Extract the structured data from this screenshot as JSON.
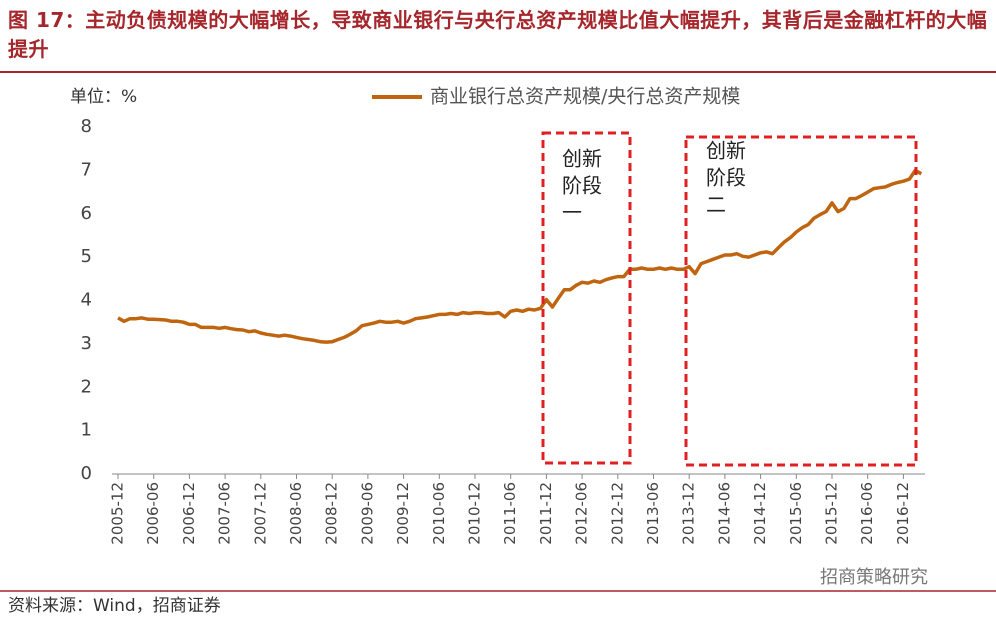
{
  "chart_data": {
    "type": "line",
    "title": "图 17：主动负债规模的大幅增长，导致商业银行与央行总资产规模比值大幅提升，其背后是金融杠杆的大幅提升",
    "y_unit_label": "单位：%",
    "source": "资料来源：Wind，招商证券",
    "watermark": "招商策略研究",
    "annotations": [
      [
        "创新",
        "阶段",
        "一"
      ],
      [
        "创新",
        "阶段",
        "二"
      ]
    ],
    "x": [
      "2005-12",
      "2006-01",
      "2006-02",
      "2006-03",
      "2006-04",
      "2006-05",
      "2006-06",
      "2006-07",
      "2006-08",
      "2006-09",
      "2006-10",
      "2006-11",
      "2006-12",
      "2007-01",
      "2007-02",
      "2007-03",
      "2007-04",
      "2007-05",
      "2007-06",
      "2007-07",
      "2007-08",
      "2007-09",
      "2007-10",
      "2007-11",
      "2007-12",
      "2008-01",
      "2008-02",
      "2008-03",
      "2008-04",
      "2008-05",
      "2008-06",
      "2008-07",
      "2008-08",
      "2008-09",
      "2008-10",
      "2008-11",
      "2008-12",
      "2009-01",
      "2009-02",
      "2009-03",
      "2009-04",
      "2009-05",
      "2009-06",
      "2009-07",
      "2009-08",
      "2009-09",
      "2009-10",
      "2009-11",
      "2009-12",
      "2010-01",
      "2010-02",
      "2010-03",
      "2010-04",
      "2010-05",
      "2010-06",
      "2010-07",
      "2010-08",
      "2010-09",
      "2010-10",
      "2010-11",
      "2010-12",
      "2011-01",
      "2011-02",
      "2011-03",
      "2011-04",
      "2011-05",
      "2011-06",
      "2011-07",
      "2011-08",
      "2011-09",
      "2011-10",
      "2011-11",
      "2011-12",
      "2012-01",
      "2012-02",
      "2012-03",
      "2012-04",
      "2012-05",
      "2012-06",
      "2012-07",
      "2012-08",
      "2012-09",
      "2012-10",
      "2012-11",
      "2012-12",
      "2013-01",
      "2013-02",
      "2013-03",
      "2013-04",
      "2013-05",
      "2013-06",
      "2013-07",
      "2013-08",
      "2013-09",
      "2013-10",
      "2013-11",
      "2013-12",
      "2014-01",
      "2014-02",
      "2014-03",
      "2014-04",
      "2014-05",
      "2014-06",
      "2014-07",
      "2014-08",
      "2014-09",
      "2014-10",
      "2014-11",
      "2014-12",
      "2015-01",
      "2015-02",
      "2015-03",
      "2015-04",
      "2015-05",
      "2015-06",
      "2015-07",
      "2015-08",
      "2015-09",
      "2015-10",
      "2015-11",
      "2015-12",
      "2016-01",
      "2016-02",
      "2016-03",
      "2016-04",
      "2016-05",
      "2016-06",
      "2016-07",
      "2016-08",
      "2016-09",
      "2016-10",
      "2016-11",
      "2016-12",
      "2017-01",
      "2017-02",
      "2017-03"
    ],
    "series": [
      {
        "name": "商业银行总资产规模/央行总资产规模",
        "color": "#c0650f",
        "values": [
          3.6,
          3.52,
          3.58,
          3.58,
          3.6,
          3.57,
          3.57,
          3.56,
          3.55,
          3.52,
          3.52,
          3.5,
          3.45,
          3.45,
          3.38,
          3.38,
          3.38,
          3.36,
          3.38,
          3.35,
          3.33,
          3.32,
          3.28,
          3.3,
          3.25,
          3.22,
          3.2,
          3.18,
          3.2,
          3.18,
          3.15,
          3.12,
          3.1,
          3.08,
          3.05,
          3.04,
          3.05,
          3.1,
          3.15,
          3.22,
          3.3,
          3.42,
          3.45,
          3.48,
          3.52,
          3.5,
          3.5,
          3.52,
          3.48,
          3.52,
          3.58,
          3.6,
          3.62,
          3.65,
          3.68,
          3.68,
          3.7,
          3.68,
          3.72,
          3.7,
          3.72,
          3.72,
          3.7,
          3.7,
          3.72,
          3.62,
          3.75,
          3.78,
          3.75,
          3.8,
          3.78,
          3.82,
          4.02,
          3.85,
          4.05,
          4.25,
          4.25,
          4.35,
          4.42,
          4.4,
          4.45,
          4.42,
          4.48,
          4.52,
          4.55,
          4.55,
          4.72,
          4.72,
          4.75,
          4.72,
          4.72,
          4.75,
          4.72,
          4.75,
          4.72,
          4.72,
          4.78,
          4.62,
          4.85,
          4.9,
          4.95,
          5.0,
          5.05,
          5.05,
          5.08,
          5.02,
          5.0,
          5.05,
          5.1,
          5.12,
          5.08,
          5.22,
          5.35,
          5.45,
          5.58,
          5.68,
          5.75,
          5.9,
          5.98,
          6.05,
          6.25,
          6.05,
          6.12,
          6.35,
          6.35,
          6.42,
          6.5,
          6.58,
          6.6,
          6.62,
          6.68,
          6.72,
          6.75,
          6.8,
          7.0,
          6.92
        ]
      }
    ],
    "ylim": [
      0,
      8
    ],
    "yticks": [
      0,
      1,
      2,
      3,
      4,
      5,
      6,
      7,
      8
    ],
    "grid": false
  }
}
